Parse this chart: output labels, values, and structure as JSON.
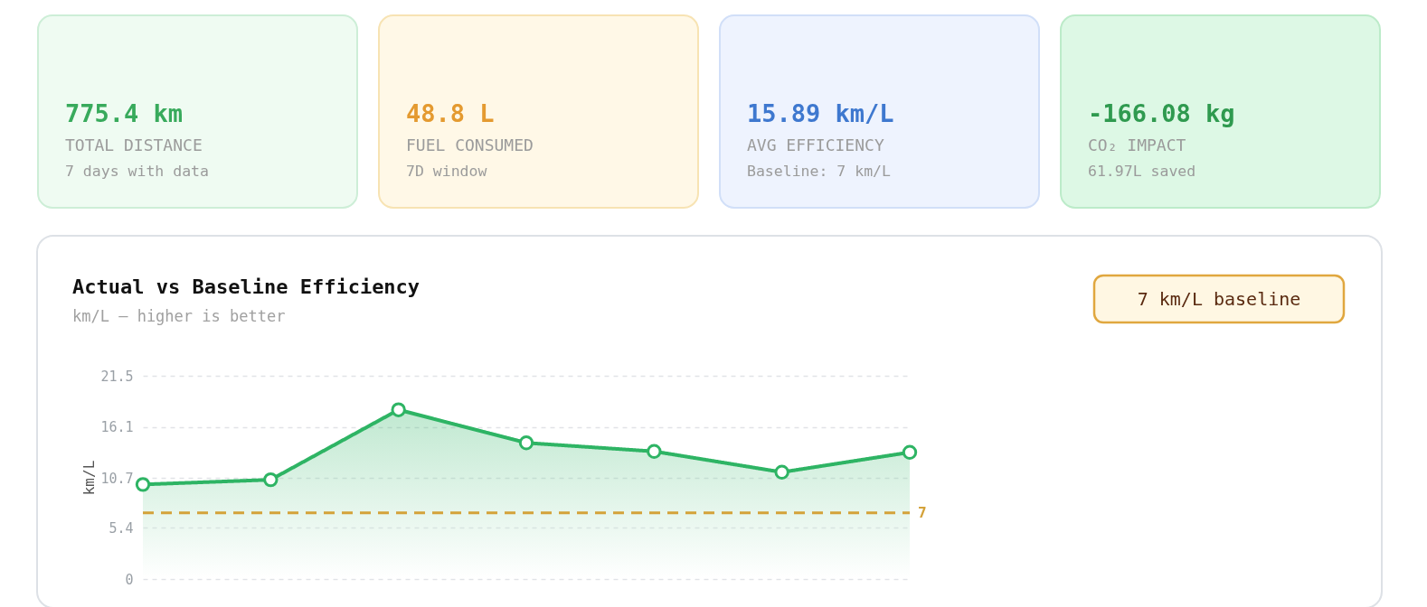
{
  "chart_data": [
    {
      "type": "other",
      "annotations": [
        "775.4 km",
        "TOTAL DISTANCE",
        "7 days with data"
      ]
    },
    {
      "type": "other",
      "annotations": [
        "48.8 L",
        "FUEL CONSUMED",
        "7D window"
      ]
    },
    {
      "type": "other",
      "annotations": [
        "15.89 km/L",
        "AVG EFFICIENCY",
        "Baseline: 7 km/L"
      ]
    },
    {
      "type": "other",
      "annotations": [
        "-166.08 kg",
        "CO₂ IMPACT",
        "61.97L saved"
      ]
    },
    {
      "type": "area",
      "title": "Actual vs Baseline Efficiency",
      "subtitle": "km/L – higher is better",
      "ylabel": "km/L",
      "categories": [
        null,
        null,
        null,
        null,
        null,
        null,
        null
      ],
      "series": [
        {
          "color": "#2eb464",
          "values": [
            10.0,
            10.5,
            17.9,
            14.4,
            13.5,
            11.3,
            13.4
          ]
        }
      ],
      "ylim": [
        0,
        21.5
      ],
      "yticks": [
        0,
        5.4,
        10.7,
        16.1,
        21.5
      ],
      "grid": "y",
      "marker": "circle",
      "tick_labels": "y",
      "ref_lines": [
        {
          "axis": "y",
          "value": 7,
          "label": "7",
          "color": "#d4a23a",
          "line_style": "dashed"
        }
      ],
      "annotations": [
        "7 km/L baseline"
      ]
    }
  ]
}
